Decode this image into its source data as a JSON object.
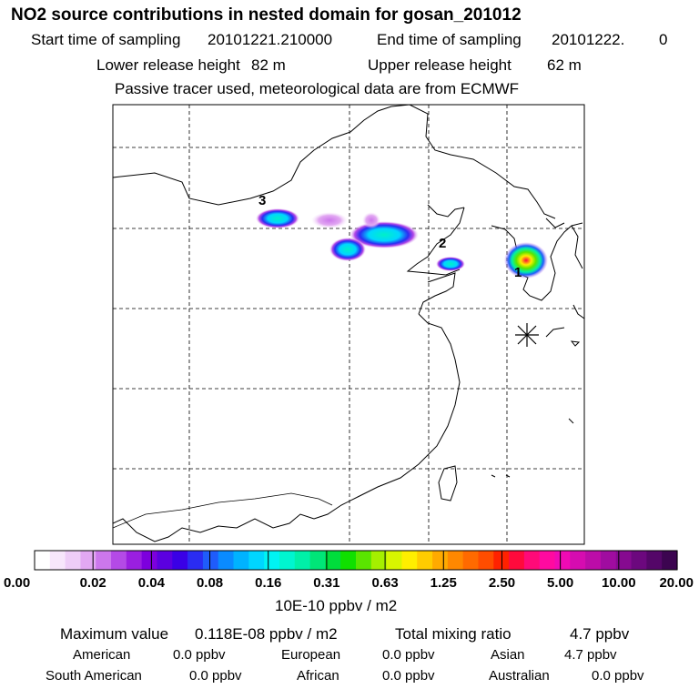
{
  "header": {
    "title": "NO2 source contributions in nested domain for gosan_201012",
    "start_label": "Start time of sampling",
    "start_value": "20101221.210000",
    "end_label": "End time of sampling",
    "end_value": "20101222.",
    "end_extra": "0",
    "lower_label": "Lower release height",
    "lower_value": "82 m",
    "upper_label": "Upper release height",
    "upper_value": "62 m",
    "tracer_note": "Passive tracer used, meteorological data are from ECMWF"
  },
  "map": {
    "source_labels": [
      "1",
      "2",
      "3"
    ],
    "receptor_marker": "gosan-receptor"
  },
  "colorbar": {
    "tick_labels": [
      "0.00",
      "0.02",
      "0.04",
      "0.08",
      "0.16",
      "0.31",
      "0.63",
      "1.25",
      "2.50",
      "5.00",
      "10.00",
      "20.00"
    ],
    "unit": "10E-10 ppbv / m2",
    "colors": [
      "#ffffff",
      "#f7e6fb",
      "#eecdf7",
      "#e2a8f2",
      "#cc77ec",
      "#b44ae6",
      "#9a1fe0",
      "#7d00de",
      "#5b00e0",
      "#3a00e6",
      "#2a2cf2",
      "#1f5cfb",
      "#0a8bff",
      "#00b3ff",
      "#00d6ff",
      "#00f3f3",
      "#00f5d0",
      "#00f0a8",
      "#00e678",
      "#00dd3c",
      "#10e000",
      "#5ae500",
      "#a5ef00",
      "#d8f500",
      "#ffee00",
      "#ffcc00",
      "#ffaa00",
      "#ff8800",
      "#ff6a00",
      "#ff4d00",
      "#ff2200",
      "#ff0a3c",
      "#ff0a78",
      "#ff0aa0",
      "#f00ab4",
      "#d60cb0",
      "#bc0ca8",
      "#a00ca0",
      "#860a90",
      "#6c087e",
      "#540668",
      "#3c0450"
    ]
  },
  "footer": {
    "max_label": "Maximum value",
    "max_value": "0.118E-08 ppbv / m2",
    "total_label": "Total mixing ratio",
    "total_value": "4.7 ppbv",
    "regions": [
      {
        "name": "American",
        "value": "0.0 ppbv"
      },
      {
        "name": "European",
        "value": "0.0 ppbv"
      },
      {
        "name": "Asian",
        "value": "4.7 ppbv"
      },
      {
        "name": "South American",
        "value": "0.0 ppbv"
      },
      {
        "name": "African",
        "value": "0.0 ppbv"
      },
      {
        "name": "Australian",
        "value": "0.0 ppbv"
      }
    ]
  }
}
